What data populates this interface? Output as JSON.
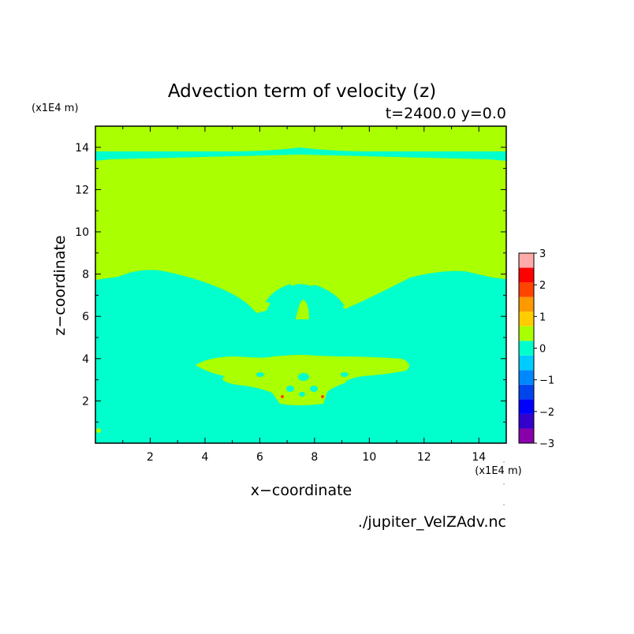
{
  "chart_data": {
    "type": "heatmap",
    "title": "Advection term of velocity (z)",
    "subtitle": "t=2400.0 y=0.0",
    "xlabel": "x−coordinate",
    "ylabel": "z−coordinate",
    "x_unit": "(x1E4 m)",
    "y_unit": "(x1E4 m)",
    "source": "./jupiter_VelZAdv.nc",
    "xlim": [
      0,
      15
    ],
    "ylim": [
      0,
      15
    ],
    "x_ticks": [
      2,
      4,
      6,
      8,
      10,
      12,
      14
    ],
    "y_ticks": [
      2,
      4,
      6,
      8,
      10,
      12,
      14
    ],
    "x_tick_labels": [
      "2",
      "4",
      "6",
      "8",
      "10",
      "12",
      "14"
    ],
    "y_tick_labels": [
      "2",
      "4",
      "6",
      "8",
      "10",
      "12",
      "14"
    ],
    "colorbar": {
      "levels": [
        -3,
        -2.5,
        -2,
        -1.5,
        -1,
        -0.5,
        0,
        0.5,
        1,
        1.5,
        2,
        2.5,
        3
      ],
      "tick_labels": [
        "3",
        "2",
        "1",
        "0",
        "−1",
        "−2",
        "−3"
      ],
      "tick_values": [
        3,
        2,
        1,
        0,
        -1,
        -2,
        -3
      ],
      "colors": [
        "#8800aa",
        "#3300cc",
        "#0000ff",
        "#0044ee",
        "#0088ff",
        "#00ccff",
        "#00ffcc",
        "#aaff00",
        "#ffcc00",
        "#ff9900",
        "#ff4400",
        "#ff0000",
        "#ffaaaa"
      ]
    },
    "background_value_range": [
      0,
      0.5
    ],
    "regions": [
      {
        "name": "upper-thin-layer",
        "value_range": [
          -0.5,
          0
        ],
        "z_range": [
          13.3,
          13.8
        ]
      },
      {
        "name": "lower-layer",
        "value_range": [
          -0.5,
          0
        ],
        "z_range": [
          0,
          7.7
        ]
      },
      {
        "name": "central-plume",
        "value_range": [
          0,
          0.5
        ],
        "x_range": [
          3.5,
          11.5
        ],
        "z_range": [
          1.8,
          4.2
        ]
      },
      {
        "name": "hotspots",
        "value_range": [
          1.5,
          2.5
        ],
        "points": [
          [
            6.85,
            2.3
          ],
          [
            8.35,
            2.3
          ]
        ]
      }
    ]
  }
}
